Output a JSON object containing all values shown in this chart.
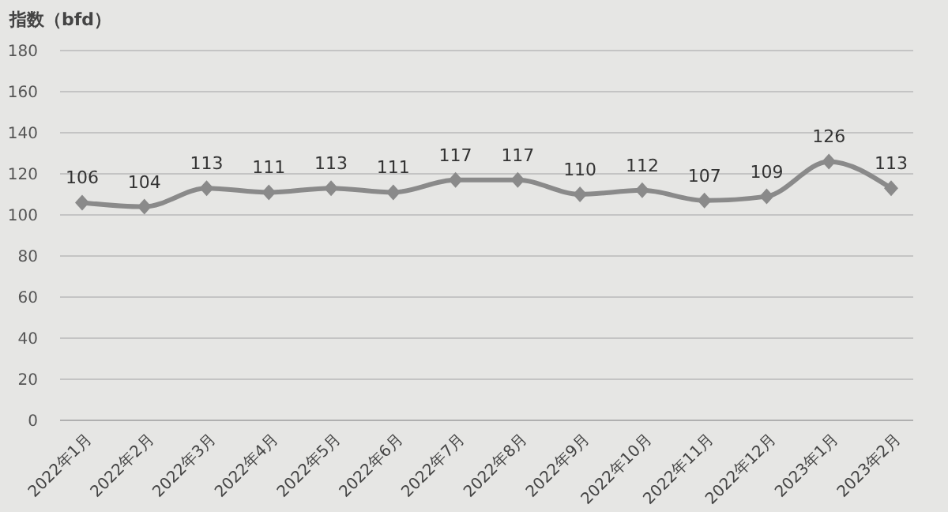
{
  "chart_data": {
    "type": "line",
    "ylabel": "指数（bfd）",
    "categories": [
      "2022年1月",
      "2022年2月",
      "2022年3月",
      "2022年4月",
      "2022年5月",
      "2022年6月",
      "2022年7月",
      "2022年8月",
      "2022年9月",
      "2022年10月",
      "2022年11月",
      "2022年12月",
      "2023年1月",
      "2023年2月"
    ],
    "series": [
      {
        "color": "#8a8a8a",
        "values": [
          106,
          104,
          113,
          111,
          113,
          111,
          117,
          117,
          110,
          112,
          107,
          109,
          126,
          113
        ]
      }
    ],
    "ylim": [
      0,
      180
    ],
    "yticks": [
      0,
      20,
      40,
      60,
      80,
      100,
      120,
      140,
      160,
      180
    ],
    "grid": "y",
    "marker": "diamond",
    "line_style": "solid",
    "data_labels": true
  }
}
